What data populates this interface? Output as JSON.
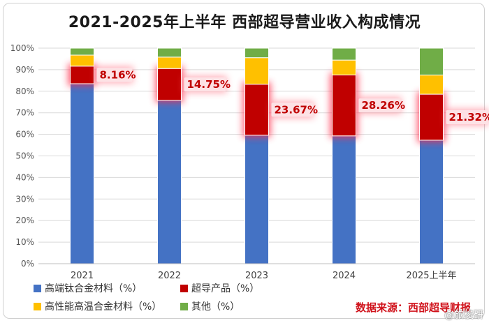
{
  "chart_data": {
    "type": "bar",
    "stacked": true,
    "title": "2021-2025年上半年 西部超导营业收入构成情况",
    "categories": [
      "2021",
      "2022",
      "2023",
      "2024",
      "2025上半年"
    ],
    "y_ticks": [
      "0%",
      "10%",
      "20%",
      "30%",
      "40%",
      "50%",
      "60%",
      "70%",
      "80%",
      "90%",
      "100%"
    ],
    "ylim": [
      0,
      100
    ],
    "grid": true,
    "legend_position": "bottom-left",
    "series": [
      {
        "name": "高端钛合金材料（%）",
        "color": "#4472c4",
        "values": [
          83.5,
          75.8,
          59.6,
          59.3,
          57.3
        ]
      },
      {
        "name": "超导产品（%）",
        "color": "#c00000",
        "values": [
          8.16,
          14.75,
          23.67,
          28.26,
          21.32
        ]
      },
      {
        "name": "高性能高温合金材料（%）",
        "color": "#ffc000",
        "values": [
          5.1,
          5.3,
          12.3,
          6.9,
          8.9
        ]
      },
      {
        "name": "其他（%）",
        "color": "#70ad47",
        "values": [
          3.24,
          4.15,
          4.43,
          5.54,
          12.48
        ]
      }
    ],
    "data_labels": [
      "8.16%",
      "14.75%",
      "23.67%",
      "28.26%",
      "21.32%"
    ],
    "label_series": "超导产品（%）"
  },
  "source": "数据来源：西部超导财报",
  "watermark": "@旅梭研"
}
